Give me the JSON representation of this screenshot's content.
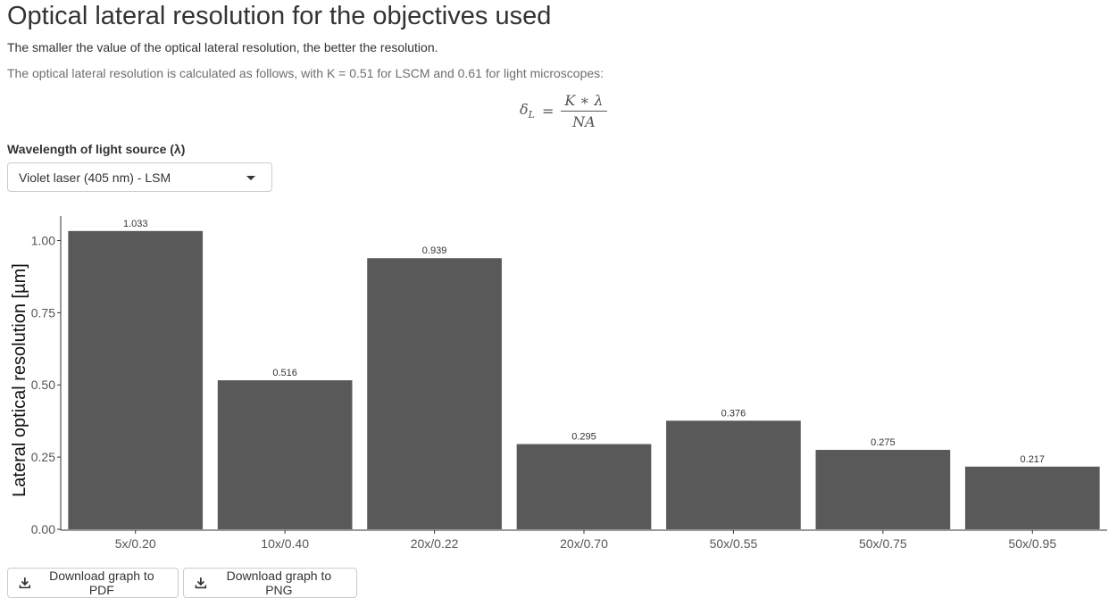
{
  "header": {
    "title": "Optical lateral resolution for the objectives used",
    "subtitle": "The smaller the value of the optical lateral resolution, the better the resolution.",
    "formula_intro": "The optical lateral resolution is calculated as follows, with K = 0.51 for LSCM and 0.61 for light microscopes:"
  },
  "formula": {
    "lhs_symbol": "δ",
    "lhs_subscript": "L",
    "equals": "=",
    "numerator": "K ∗ λ",
    "denominator": "NA"
  },
  "wavelength_select": {
    "label": "Wavelength of light source (λ)",
    "selected": "Violet laser (405 nm) - LSM"
  },
  "buttons": {
    "download_pdf": "Download graph to PDF",
    "download_png": "Download graph to PNG"
  },
  "chart_data": {
    "type": "bar",
    "categories": [
      "5x/0.20",
      "10x/0.40",
      "20x/0.22",
      "20x/0.70",
      "50x/0.55",
      "50x/0.75",
      "50x/0.95"
    ],
    "values": [
      1.033,
      0.516,
      0.939,
      0.295,
      0.376,
      0.275,
      0.217
    ],
    "data_labels": [
      "1.033",
      "0.516",
      "0.939",
      "0.295",
      "0.376",
      "0.275",
      "0.217"
    ],
    "xlabel": "",
    "ylabel": "Lateral optical resolution [µm]",
    "yticks": [
      "0.00",
      "0.25",
      "0.50",
      "0.75",
      "1.00"
    ],
    "ylim": [
      0,
      1.085
    ],
    "bar_color": "#595959",
    "grid": false,
    "legend": "none"
  }
}
